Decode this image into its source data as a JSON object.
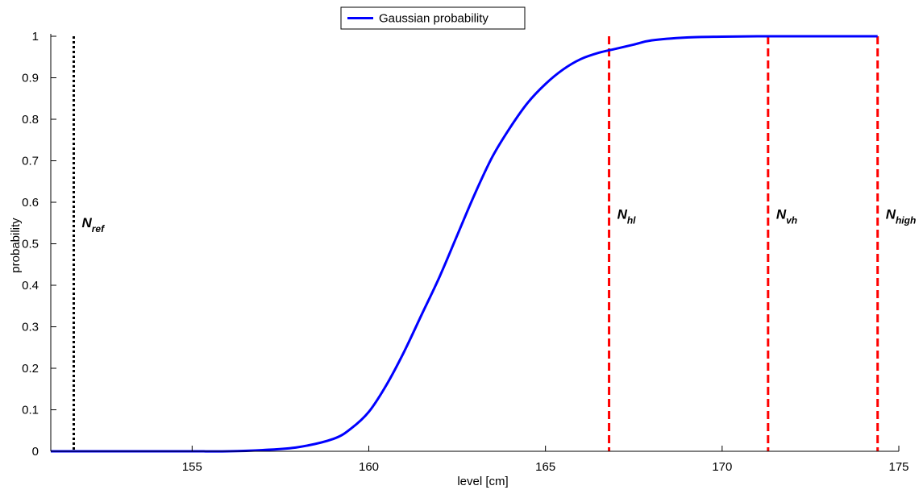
{
  "chart_data": {
    "type": "line",
    "title": "",
    "xlabel": "level [cm]",
    "ylabel": "probability",
    "xlim": [
      151,
      175
    ],
    "ylim": [
      0,
      1
    ],
    "grid": false,
    "legend_position": "top-center",
    "x_ticks": [
      155,
      160,
      165,
      170,
      175
    ],
    "y_ticks": [
      0,
      0.1,
      0.2,
      0.3,
      0.4,
      0.5,
      0.6,
      0.7,
      0.8,
      0.9,
      1
    ],
    "x_tick_labels": [
      "155",
      "160",
      "165",
      "170",
      "175"
    ],
    "y_tick_labels": [
      "0",
      "0.1",
      "0.2",
      "0.3",
      "0.4",
      "0.5",
      "0.6",
      "0.7",
      "0.8",
      "0.9",
      "1"
    ],
    "series": [
      {
        "name": "Gaussian probability",
        "color": "#0000ff",
        "x": [
          151,
          152,
          153,
          154,
          155,
          156,
          157,
          158,
          159,
          159.5,
          160,
          160.5,
          161,
          161.5,
          162,
          162.5,
          163,
          163.5,
          164,
          164.5,
          165,
          165.5,
          166,
          166.5,
          167,
          167.5,
          168,
          169,
          170,
          171,
          172,
          173,
          174,
          174.4
        ],
        "y": [
          0,
          0,
          0,
          0,
          0,
          0,
          0.003,
          0.01,
          0.03,
          0.055,
          0.095,
          0.16,
          0.24,
          0.33,
          0.42,
          0.52,
          0.62,
          0.71,
          0.78,
          0.84,
          0.885,
          0.92,
          0.945,
          0.96,
          0.97,
          0.98,
          0.99,
          0.997,
          0.999,
          1,
          1,
          1,
          1,
          1
        ]
      }
    ],
    "vertical_lines": [
      {
        "x": 151.65,
        "style": "dotted",
        "color": "#000000",
        "label_main": "N",
        "label_sub": "ref",
        "label_y": 0.55
      },
      {
        "x": 166.8,
        "style": "dashed",
        "color": "#ff0000",
        "label_main": "N",
        "label_sub": "hl",
        "label_y": 0.57
      },
      {
        "x": 171.3,
        "style": "dashed",
        "color": "#ff0000",
        "label_main": "N",
        "label_sub": "vh",
        "label_y": 0.57
      },
      {
        "x": 174.4,
        "style": "dashed",
        "color": "#ff0000",
        "label_main": "N",
        "label_sub": "high",
        "label_y": 0.57
      }
    ]
  }
}
